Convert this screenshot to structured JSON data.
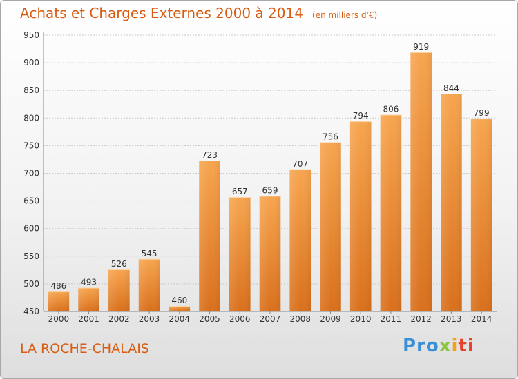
{
  "chart_data": {
    "type": "bar",
    "title": "Achats et Charges Externes 2000 à 2014",
    "subtitle": "(en milliers d'€)",
    "categories": [
      "2000",
      "2001",
      "2002",
      "2003",
      "2004",
      "2005",
      "2006",
      "2007",
      "2008",
      "2009",
      "2010",
      "2011",
      "2012",
      "2013",
      "2014"
    ],
    "values": [
      486,
      493,
      526,
      545,
      460,
      723,
      657,
      659,
      707,
      756,
      794,
      806,
      919,
      844,
      799
    ],
    "ylim": [
      450,
      950
    ],
    "yticks": [
      450,
      500,
      550,
      600,
      650,
      700,
      750,
      800,
      850,
      900,
      950
    ],
    "grid": true,
    "xlabel": "",
    "ylabel": "",
    "colors": {
      "bar_light": "#f7a54f",
      "bar_dark": "#d9701c",
      "text": "#d85d13"
    }
  },
  "commune": "LA ROCHE-CHALAIS",
  "logo": {
    "part1": "Pro",
    "part2": "x",
    "part3": "i",
    "part4": "ti"
  }
}
